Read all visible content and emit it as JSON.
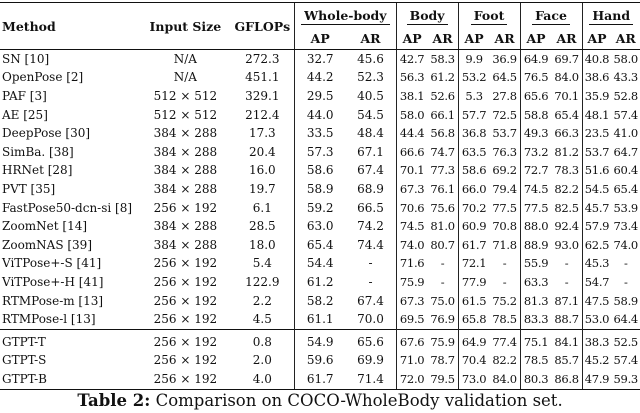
{
  "table": {
    "headers": {
      "method": "Method",
      "input_size": "Input Size",
      "gflops": "GFLOPs",
      "groups": [
        "Whole-body",
        "Body",
        "Foot",
        "Face",
        "Hand"
      ],
      "ap": "AP",
      "ar": "AR"
    },
    "rows": [
      {
        "method": "SN [10]",
        "input": "N/A",
        "gflops": "272.3",
        "wb_ap": "32.7",
        "wb_ar": "45.6",
        "body_ap": "42.7",
        "body_ar": "58.3",
        "foot_ap": "9.9",
        "foot_ar": "36.9",
        "face_ap": "64.9",
        "face_ar": "69.7",
        "hand_ap": "40.8",
        "hand_ar": "58.0"
      },
      {
        "method": "OpenPose [2]",
        "input": "N/A",
        "gflops": "451.1",
        "wb_ap": "44.2",
        "wb_ar": "52.3",
        "body_ap": "56.3",
        "body_ar": "61.2",
        "foot_ap": "53.2",
        "foot_ar": "64.5",
        "face_ap": "76.5",
        "face_ar": "84.0",
        "hand_ap": "38.6",
        "hand_ar": "43.3"
      },
      {
        "method": "PAF [3]",
        "input": "512 × 512",
        "gflops": "329.1",
        "wb_ap": "29.5",
        "wb_ar": "40.5",
        "body_ap": "38.1",
        "body_ar": "52.6",
        "foot_ap": "5.3",
        "foot_ar": "27.8",
        "face_ap": "65.6",
        "face_ar": "70.1",
        "hand_ap": "35.9",
        "hand_ar": "52.8"
      },
      {
        "method": "AE [25]",
        "input": "512 × 512",
        "gflops": "212.4",
        "wb_ap": "44.0",
        "wb_ar": "54.5",
        "body_ap": "58.0",
        "body_ar": "66.1",
        "foot_ap": "57.7",
        "foot_ar": "72.5",
        "face_ap": "58.8",
        "face_ar": "65.4",
        "hand_ap": "48.1",
        "hand_ar": "57.4"
      },
      {
        "method": "DeepPose [30]",
        "input": "384 × 288",
        "gflops": "17.3",
        "wb_ap": "33.5",
        "wb_ar": "48.4",
        "body_ap": "44.4",
        "body_ar": "56.8",
        "foot_ap": "36.8",
        "foot_ar": "53.7",
        "face_ap": "49.3",
        "face_ar": "66.3",
        "hand_ap": "23.5",
        "hand_ar": "41.0"
      },
      {
        "method": "SimBa. [38]",
        "input": "384 × 288",
        "gflops": "20.4",
        "wb_ap": "57.3",
        "wb_ar": "67.1",
        "body_ap": "66.6",
        "body_ar": "74.7",
        "foot_ap": "63.5",
        "foot_ar": "76.3",
        "face_ap": "73.2",
        "face_ar": "81.2",
        "hand_ap": "53.7",
        "hand_ar": "64.7"
      },
      {
        "method": "HRNet [28]",
        "input": "384 × 288",
        "gflops": "16.0",
        "wb_ap": "58.6",
        "wb_ar": "67.4",
        "body_ap": "70.1",
        "body_ar": "77.3",
        "foot_ap": "58.6",
        "foot_ar": "69.2",
        "face_ap": "72.7",
        "face_ar": "78.3",
        "hand_ap": "51.6",
        "hand_ar": "60.4"
      },
      {
        "method": "PVT [35]",
        "input": "384 × 288",
        "gflops": "19.7",
        "wb_ap": "58.9",
        "wb_ar": "68.9",
        "body_ap": "67.3",
        "body_ar": "76.1",
        "foot_ap": "66.0",
        "foot_ar": "79.4",
        "face_ap": "74.5",
        "face_ar": "82.2",
        "hand_ap": "54.5",
        "hand_ar": "65.4"
      },
      {
        "method": "FastPose50-dcn-si [8]",
        "input": "256 × 192",
        "gflops": "6.1",
        "wb_ap": "59.2",
        "wb_ar": "66.5",
        "body_ap": "70.6",
        "body_ar": "75.6",
        "foot_ap": "70.2",
        "foot_ar": "77.5",
        "face_ap": "77.5",
        "face_ar": "82.5",
        "hand_ap": "45.7",
        "hand_ar": "53.9"
      },
      {
        "method": "ZoomNet [14]",
        "input": "384 × 288",
        "gflops": "28.5",
        "wb_ap": "63.0",
        "wb_ar": "74.2",
        "body_ap": "74.5",
        "body_ar": "81.0",
        "foot_ap": "60.9",
        "foot_ar": "70.8",
        "face_ap": "88.0",
        "face_ar": "92.4",
        "hand_ap": "57.9",
        "hand_ar": "73.4"
      },
      {
        "method": "ZoomNAS [39]",
        "input": "384 × 288",
        "gflops": "18.0",
        "wb_ap": "65.4",
        "wb_ar": "74.4",
        "body_ap": "74.0",
        "body_ar": "80.7",
        "foot_ap": "61.7",
        "foot_ar": "71.8",
        "face_ap": "88.9",
        "face_ar": "93.0",
        "hand_ap": "62.5",
        "hand_ar": "74.0"
      },
      {
        "method": "ViTPose+-S [41]",
        "input": "256 × 192",
        "gflops": "5.4",
        "wb_ap": "54.4",
        "wb_ar": "-",
        "body_ap": "71.6",
        "body_ar": "-",
        "foot_ap": "72.1",
        "foot_ar": "-",
        "face_ap": "55.9",
        "face_ar": "-",
        "hand_ap": "45.3",
        "hand_ar": "-"
      },
      {
        "method": "ViTPose+-H [41]",
        "input": "256 × 192",
        "gflops": "122.9",
        "wb_ap": "61.2",
        "wb_ar": "-",
        "body_ap": "75.9",
        "body_ar": "-",
        "foot_ap": "77.9",
        "foot_ar": "-",
        "face_ap": "63.3",
        "face_ar": "-",
        "hand_ap": "54.7",
        "hand_ar": "-"
      },
      {
        "method": "RTMPose-m [13]",
        "input": "256 × 192",
        "gflops": "2.2",
        "wb_ap": "58.2",
        "wb_ar": "67.4",
        "body_ap": "67.3",
        "body_ar": "75.0",
        "foot_ap": "61.5",
        "foot_ar": "75.2",
        "face_ap": "81.3",
        "face_ar": "87.1",
        "hand_ap": "47.5",
        "hand_ar": "58.9"
      },
      {
        "method": "RTMPose-l [13]",
        "input": "256 × 192",
        "gflops": "4.5",
        "wb_ap": "61.1",
        "wb_ar": "70.0",
        "body_ap": "69.5",
        "body_ar": "76.9",
        "foot_ap": "65.8",
        "foot_ar": "78.5",
        "face_ap": "83.3",
        "face_ar": "88.7",
        "hand_ap": "53.0",
        "hand_ar": "64.4"
      }
    ],
    "ours": [
      {
        "method": "GTPT-T",
        "input": "256 × 192",
        "gflops": "0.8",
        "wb_ap": "54.9",
        "wb_ar": "65.6",
        "body_ap": "67.6",
        "body_ar": "75.9",
        "foot_ap": "64.9",
        "foot_ar": "77.4",
        "face_ap": "75.1",
        "face_ar": "84.1",
        "hand_ap": "38.3",
        "hand_ar": "52.5"
      },
      {
        "method": "GTPT-S",
        "input": "256 × 192",
        "gflops": "2.0",
        "wb_ap": "59.6",
        "wb_ar": "69.9",
        "body_ap": "71.0",
        "body_ar": "78.7",
        "foot_ap": "70.4",
        "foot_ar": "82.2",
        "face_ap": "78.5",
        "face_ar": "85.7",
        "hand_ap": "45.2",
        "hand_ar": "57.4"
      },
      {
        "method": "GTPT-B",
        "input": "256 × 192",
        "gflops": "4.0",
        "wb_ap": "61.7",
        "wb_ar": "71.4",
        "body_ap": "72.0",
        "body_ar": "79.5",
        "foot_ap": "73.0",
        "foot_ar": "84.0",
        "face_ap": "80.3",
        "face_ar": "86.8",
        "hand_ap": "47.9",
        "hand_ar": "59.3"
      }
    ]
  },
  "caption": {
    "label": "Table 2:",
    "text": " Comparison on COCO-WholeBody validation set."
  }
}
